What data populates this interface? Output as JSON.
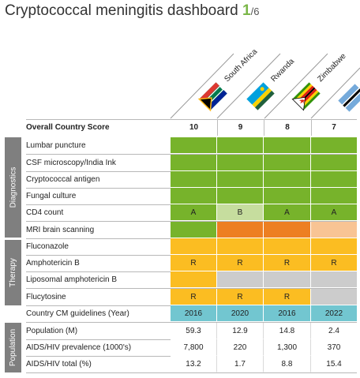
{
  "title": {
    "main": "Cryptococcal meningitis dashboard ",
    "page": "1",
    "total": "/6"
  },
  "countries": [
    "South Africa",
    "Rwanda",
    "Zimbabwe",
    ""
  ],
  "score_label": "Overall Country Score",
  "scores": [
    "10",
    "9",
    "8",
    "7"
  ],
  "sections": {
    "diagnostics": "Diagnostics",
    "therapy": "Therapy",
    "population": "Population"
  },
  "rows": [
    {
      "label": "Lumbar puncture",
      "cells": [
        "",
        "",
        "",
        ""
      ]
    },
    {
      "label": "CSF microscopy/India Ink",
      "cells": [
        "",
        "",
        "",
        ""
      ]
    },
    {
      "label": "Cryptococcal antigen",
      "cells": [
        "",
        "",
        "",
        ""
      ]
    },
    {
      "label": "Fungal culture",
      "cells": [
        "",
        "",
        "",
        ""
      ]
    },
    {
      "label": "CD4 count",
      "cells": [
        "A",
        "B",
        "A",
        "A"
      ]
    },
    {
      "label": "MRI brain scanning",
      "cells": [
        "",
        "",
        "",
        ""
      ]
    },
    {
      "label": "Fluconazole",
      "cells": [
        "",
        "",
        "",
        ""
      ]
    },
    {
      "label": "Amphotericin B",
      "cells": [
        "R",
        "R",
        "R",
        "R"
      ]
    },
    {
      "label": "Liposomal amphotericin B",
      "cells": [
        "",
        "",
        "",
        ""
      ]
    },
    {
      "label": "Flucytosine",
      "cells": [
        "R",
        "R",
        "R",
        ""
      ]
    },
    {
      "label": "Country CM guidelines (Year)",
      "cells": [
        "2016",
        "2020",
        "2016",
        "2022"
      ]
    },
    {
      "label": "Population (M)",
      "cells": [
        "59.3",
        "12.9",
        "14.8",
        "2.4"
      ]
    },
    {
      "label": "AIDS/HIV prevalence (1000's)",
      "cells": [
        "7,800",
        "220",
        "1,300",
        "370"
      ]
    },
    {
      "label": "AIDS/HIV total (%)",
      "cells": [
        "13.2",
        "1.7",
        "8.8",
        "15.4"
      ]
    }
  ],
  "colors": {
    "green": "#77b32b",
    "lightgreen": "#c6dd9e",
    "orange": "#ed7f22",
    "peach": "#f8c494",
    "yellow": "#fbbd22",
    "grey": "#cccccc",
    "teal": "#72c6d0",
    "sidebar": "#7f7f7f"
  },
  "row_colors": [
    [
      "green",
      "green",
      "green",
      "green"
    ],
    [
      "green",
      "green",
      "green",
      "green"
    ],
    [
      "green",
      "green",
      "green",
      "green"
    ],
    [
      "green",
      "green",
      "green",
      "green"
    ],
    [
      "green",
      "lightgreen",
      "green",
      "green"
    ],
    [
      "green",
      "orange",
      "orange",
      "peach"
    ],
    [
      "yellow",
      "yellow",
      "yellow",
      "yellow"
    ],
    [
      "yellow",
      "yellow",
      "yellow",
      "yellow"
    ],
    [
      "yellow",
      "grey",
      "grey",
      "grey"
    ],
    [
      "yellow",
      "yellow",
      "yellow",
      "grey"
    ],
    [
      "teal",
      "teal",
      "teal",
      "teal"
    ],
    [
      "white",
      "white",
      "white",
      "white"
    ],
    [
      "white",
      "white",
      "white",
      "white"
    ],
    [
      "white",
      "white",
      "white",
      "white"
    ]
  ],
  "flags": [
    "south-africa-flag-icon",
    "rwanda-flag-icon",
    "zimbabwe-flag-icon",
    "botswana-flag-icon"
  ]
}
